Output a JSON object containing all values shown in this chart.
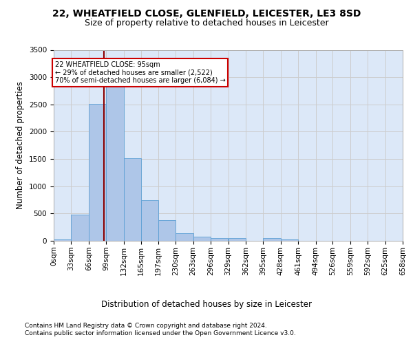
{
  "title1": "22, WHEATFIELD CLOSE, GLENFIELD, LEICESTER, LE3 8SD",
  "title2": "Size of property relative to detached houses in Leicester",
  "xlabel": "Distribution of detached houses by size in Leicester",
  "ylabel": "Number of detached properties",
  "footnote1": "Contains HM Land Registry data © Crown copyright and database right 2024.",
  "footnote2": "Contains public sector information licensed under the Open Government Licence v3.0.",
  "annotation_line1": "22 WHEATFIELD CLOSE: 95sqm",
  "annotation_line2": "← 29% of detached houses are smaller (2,522)",
  "annotation_line3": "70% of semi-detached houses are larger (6,084) →",
  "bar_bins": [
    0,
    33,
    66,
    99,
    132,
    165,
    197,
    230,
    263,
    296,
    329,
    362,
    395,
    428,
    461,
    494,
    526,
    559,
    592,
    625,
    658
  ],
  "bar_heights": [
    20,
    480,
    2510,
    2820,
    1510,
    750,
    380,
    140,
    75,
    55,
    55,
    0,
    55,
    20,
    0,
    0,
    0,
    0,
    0,
    0
  ],
  "bar_color": "#aec6e8",
  "bar_edgecolor": "#5a9fd4",
  "vline_x": 95,
  "vline_color": "#8b0000",
  "annotation_box_edgecolor": "#cc0000",
  "annotation_box_facecolor": "#ffffff",
  "ylim": [
    0,
    3500
  ],
  "xlim": [
    0,
    658
  ],
  "yticks": [
    0,
    500,
    1000,
    1500,
    2000,
    2500,
    3000,
    3500
  ],
  "xtick_labels": [
    "0sqm",
    "33sqm",
    "66sqm",
    "99sqm",
    "132sqm",
    "165sqm",
    "197sqm",
    "230sqm",
    "263sqm",
    "296sqm",
    "329sqm",
    "362sqm",
    "395sqm",
    "428sqm",
    "461sqm",
    "494sqm",
    "526sqm",
    "559sqm",
    "592sqm",
    "625sqm",
    "658sqm"
  ],
  "grid_color": "#cccccc",
  "bg_color": "#dce8f8",
  "title_fontsize": 10,
  "subtitle_fontsize": 9,
  "axis_label_fontsize": 8.5,
  "tick_fontsize": 7.5,
  "footnote_fontsize": 6.5
}
